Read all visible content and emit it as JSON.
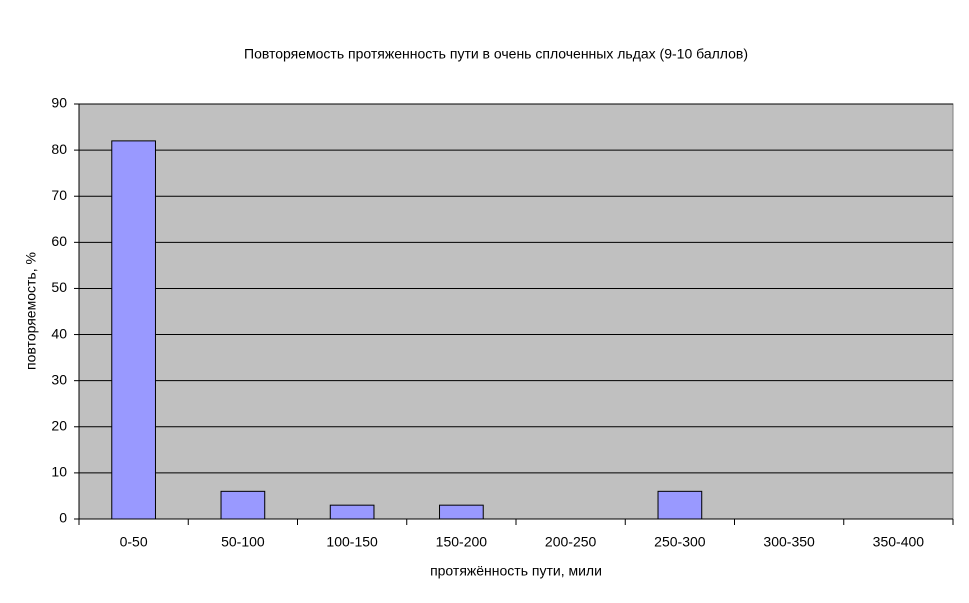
{
  "chart_data": {
    "type": "bar",
    "title": "Повторяемость протяженность пути в очень сплоченных льдах (9-10 баллов)",
    "x_label": "протяжённость пути, мили",
    "y_label": "повторяемость, %",
    "categories": [
      "0-50",
      "50-100",
      "100-150",
      "150-200",
      "200-250",
      "250-300",
      "300-350",
      "350-400"
    ],
    "values": [
      82,
      6,
      3,
      3,
      0,
      6,
      0,
      0
    ],
    "color": "#9999ff",
    "ylim": [
      0,
      90
    ],
    "yticks": [
      0,
      10,
      20,
      30,
      40,
      50,
      60,
      70,
      80,
      90
    ],
    "grid": true
  }
}
